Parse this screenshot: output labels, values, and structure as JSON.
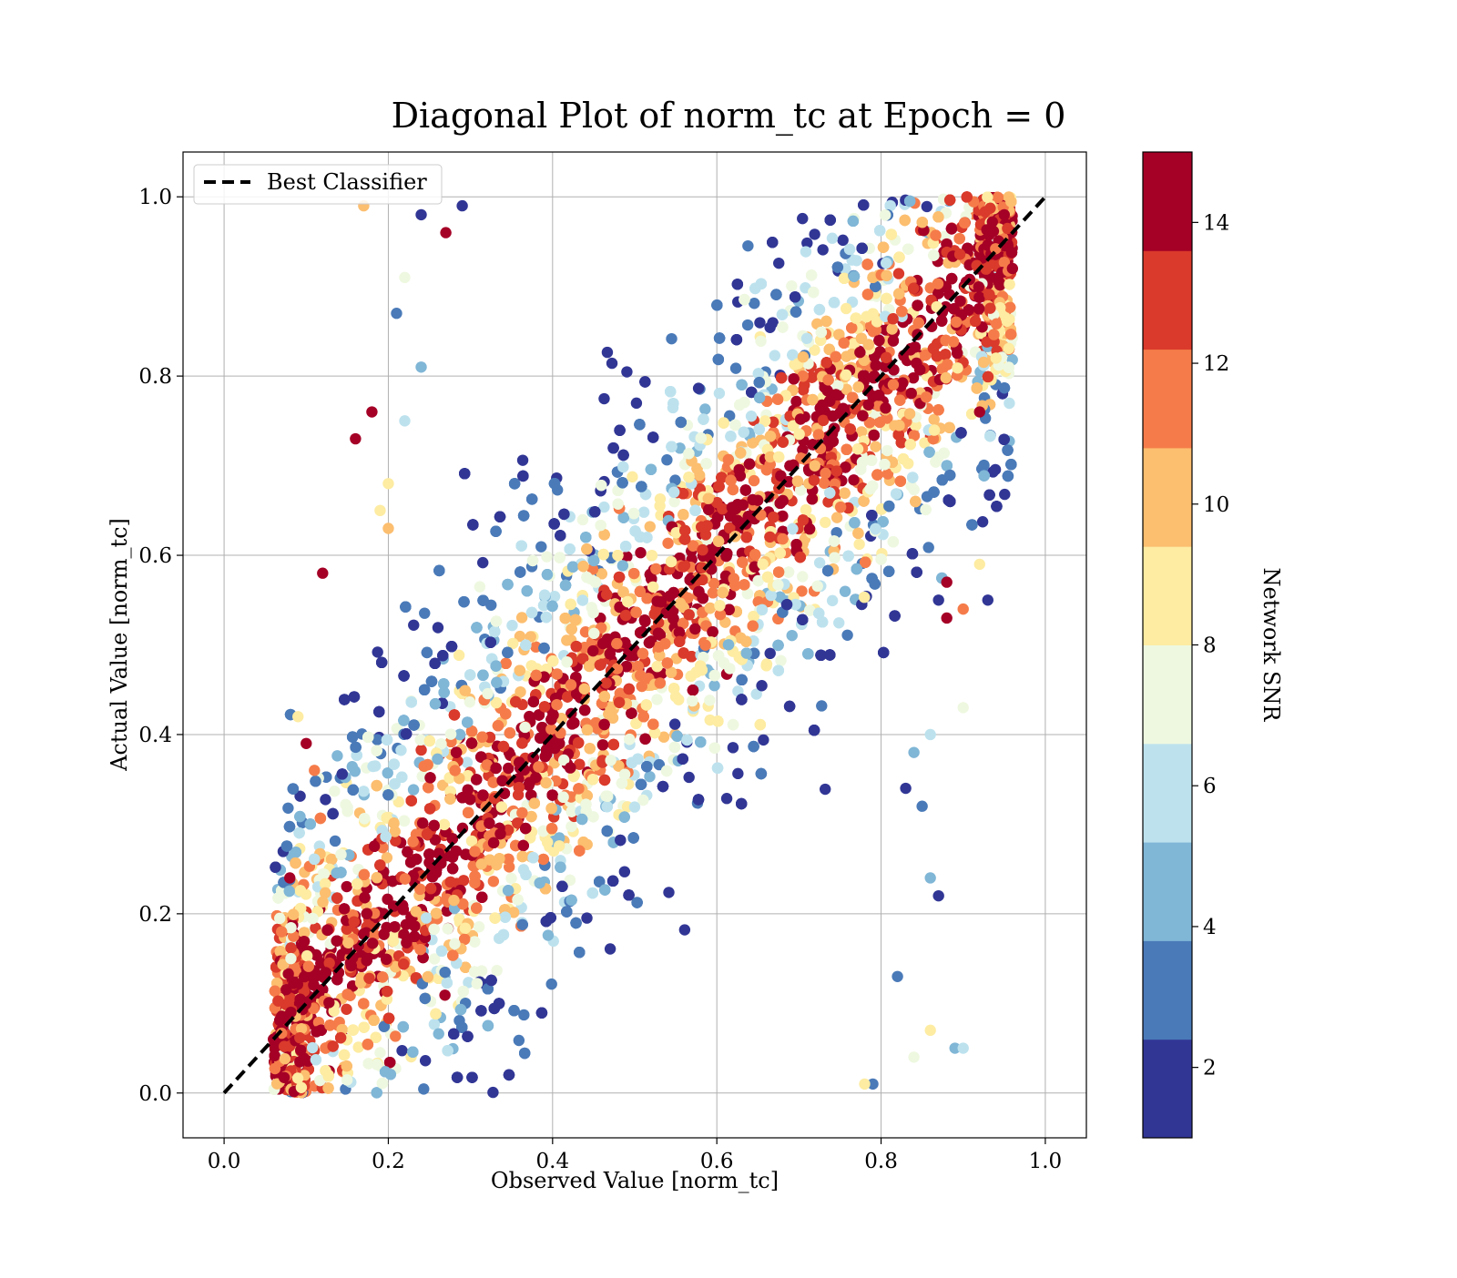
{
  "chart_data": {
    "type": "scatter",
    "title": "Diagonal Plot of norm_tc at Epoch = 0",
    "xlabel": "Observed Value [norm_tc]",
    "ylabel": "Actual Value [norm_tc]",
    "xlim": [
      -0.05,
      1.05
    ],
    "ylim": [
      -0.05,
      1.05
    ],
    "x_ticks": [
      0.0,
      0.2,
      0.4,
      0.6,
      0.8,
      1.0
    ],
    "x_tick_labels": [
      "0.0",
      "0.2",
      "0.4",
      "0.6",
      "0.8",
      "1.0"
    ],
    "y_ticks": [
      0.0,
      0.2,
      0.4,
      0.6,
      0.8,
      1.0
    ],
    "y_tick_labels": [
      "0.0",
      "0.2",
      "0.4",
      "0.6",
      "0.8",
      "1.0"
    ],
    "grid": true,
    "legend": {
      "placement": "upper-left",
      "entries": [
        {
          "label": "Best Classifier",
          "style": "dashed",
          "color": "#000000"
        }
      ]
    },
    "reference_line": {
      "name": "Best Classifier",
      "x": [
        0.0,
        1.0
      ],
      "y": [
        0.0,
        1.0
      ]
    },
    "colorbar": {
      "label": "Network SNR",
      "range": [
        1,
        15
      ],
      "ticks": [
        2,
        4,
        6,
        8,
        10,
        12,
        14
      ],
      "tick_labels": [
        "2",
        "4",
        "6",
        "8",
        "10",
        "12",
        "14"
      ],
      "colors": [
        "#313695",
        "#4a7ab8",
        "#80b6d6",
        "#bde2ee",
        "#eef8e0",
        "#fdecA2",
        "#fcbe6f",
        "#f57c4a",
        "#d93a2b",
        "#a50026"
      ]
    },
    "points": [
      [
        0.17,
        0.99,
        10
      ],
      [
        0.24,
        0.98,
        2
      ],
      [
        0.29,
        0.99,
        2
      ],
      [
        0.27,
        0.96,
        14
      ],
      [
        0.12,
        0.58,
        14
      ],
      [
        0.16,
        0.73,
        14
      ],
      [
        0.18,
        0.76,
        14
      ],
      [
        0.2,
        0.68,
        9
      ],
      [
        0.22,
        0.91,
        7
      ],
      [
        0.22,
        0.75,
        6
      ],
      [
        0.21,
        0.87,
        3
      ],
      [
        0.24,
        0.81,
        5
      ],
      [
        0.09,
        0.42,
        9
      ],
      [
        0.1,
        0.39,
        14
      ],
      [
        0.11,
        0.36,
        12
      ],
      [
        0.08,
        0.24,
        14
      ],
      [
        0.07,
        0.18,
        11
      ],
      [
        0.06,
        0.06,
        14
      ],
      [
        0.19,
        0.65,
        9
      ],
      [
        0.2,
        0.63,
        10
      ],
      [
        0.87,
        0.55,
        2
      ],
      [
        0.93,
        0.55,
        2
      ],
      [
        0.92,
        0.59,
        8
      ],
      [
        0.9,
        0.54,
        11
      ],
      [
        0.88,
        0.53,
        14
      ],
      [
        0.83,
        0.34,
        2
      ],
      [
        0.85,
        0.32,
        3
      ],
      [
        0.86,
        0.24,
        4
      ],
      [
        0.87,
        0.22,
        2
      ],
      [
        0.82,
        0.13,
        3
      ],
      [
        0.89,
        0.05,
        4
      ],
      [
        0.9,
        0.05,
        6
      ],
      [
        0.86,
        0.07,
        9
      ],
      [
        0.84,
        0.04,
        7
      ],
      [
        0.79,
        0.01,
        3
      ],
      [
        0.78,
        0.01,
        8
      ],
      [
        0.96,
        0.92,
        14
      ],
      [
        0.95,
        0.98,
        14
      ],
      [
        0.94,
        0.82,
        9
      ],
      [
        0.92,
        0.76,
        14
      ],
      [
        0.88,
        0.57,
        14
      ],
      [
        0.9,
        0.43,
        7
      ],
      [
        0.84,
        0.38,
        5
      ],
      [
        0.86,
        0.4,
        6
      ]
    ]
  }
}
